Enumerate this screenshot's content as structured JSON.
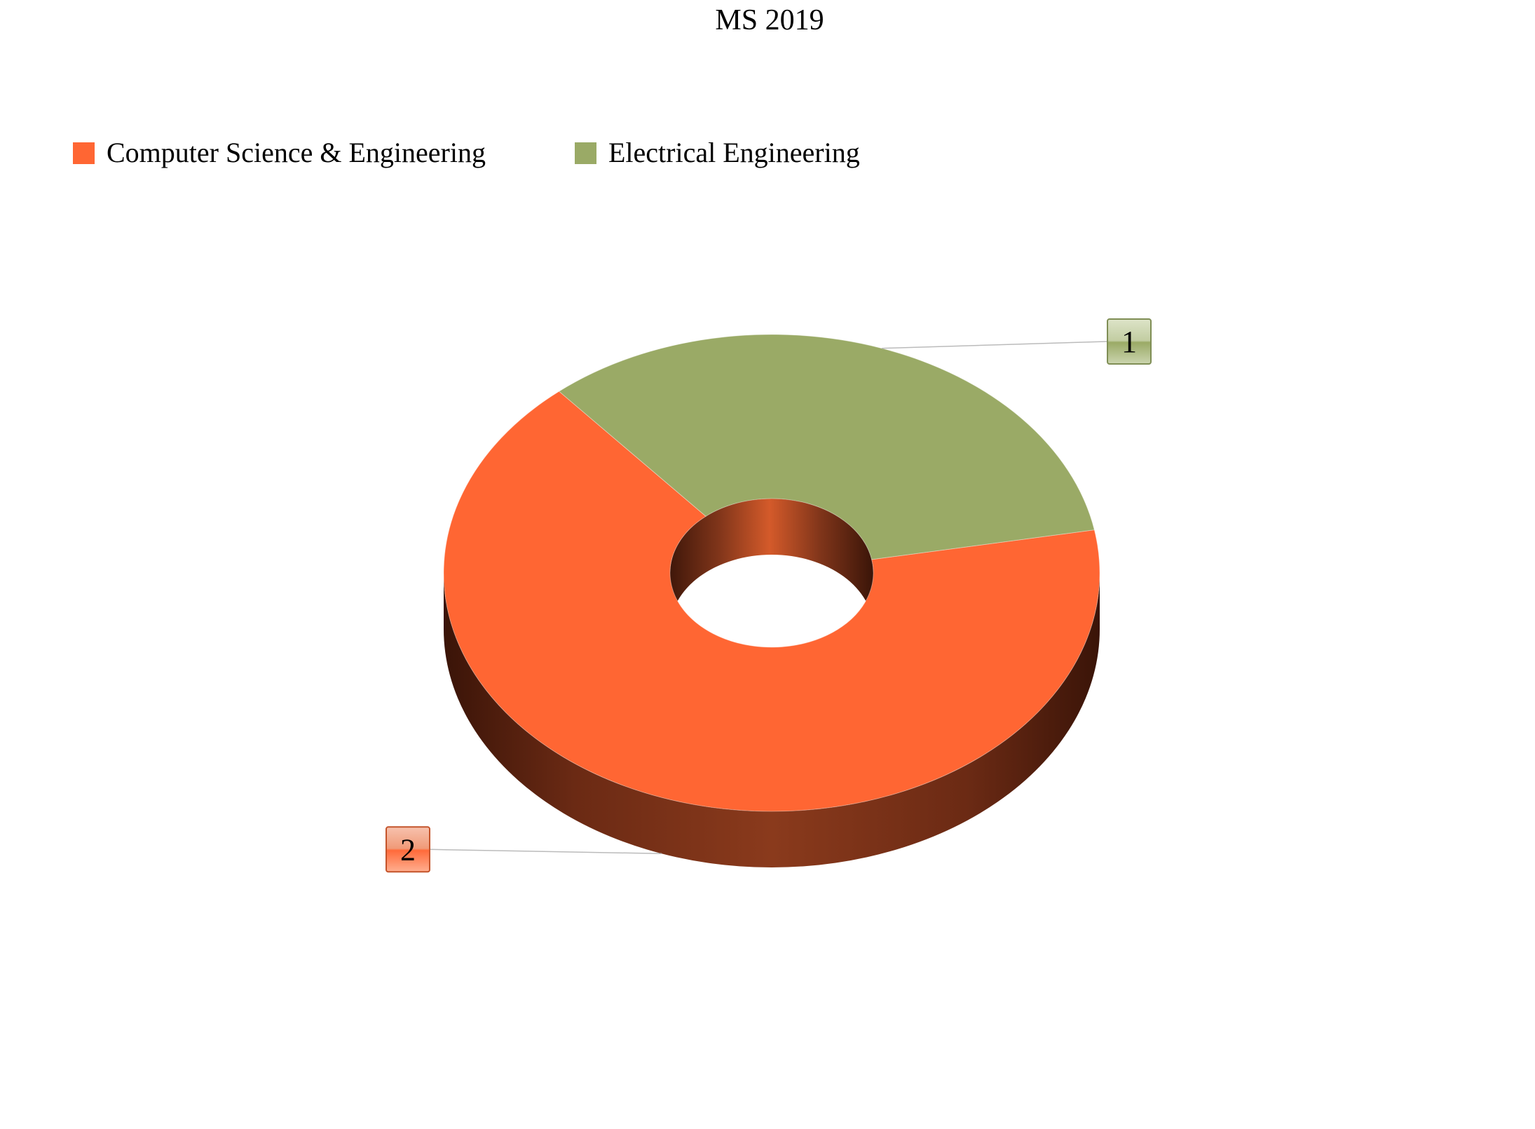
{
  "chart_data": {
    "type": "pie",
    "style": "3d-doughnut",
    "title": "MS 2019",
    "legend_position": "top-left",
    "categories": [
      "Computer Science & Engineering",
      "Electrical Engineering"
    ],
    "values": [
      2,
      1
    ],
    "data_labels": [
      "2",
      "1"
    ],
    "colors": [
      "#FF6633",
      "#9AAA66"
    ]
  }
}
